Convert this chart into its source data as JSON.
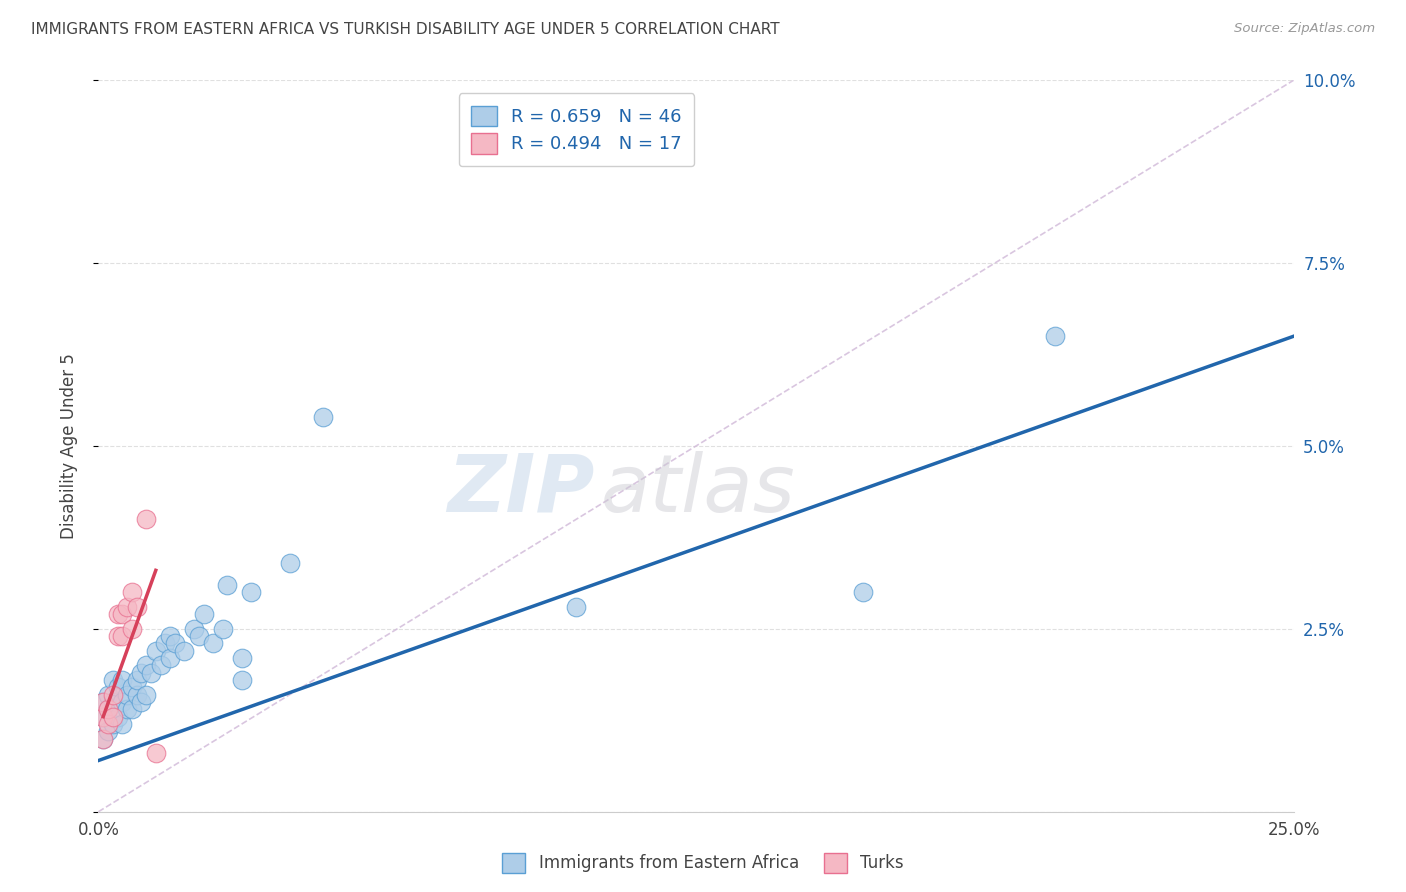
{
  "title": "IMMIGRANTS FROM EASTERN AFRICA VS TURKISH DISABILITY AGE UNDER 5 CORRELATION CHART",
  "source": "Source: ZipAtlas.com",
  "ylabel": "Disability Age Under 5",
  "legend_label_blue": "Immigrants from Eastern Africa",
  "legend_label_pink": "Turks",
  "watermark_zip": "ZIP",
  "watermark_atlas": "atlas",
  "blue_scatter_x": [
    0.001,
    0.001,
    0.001,
    0.002,
    0.002,
    0.002,
    0.003,
    0.003,
    0.003,
    0.004,
    0.004,
    0.005,
    0.005,
    0.005,
    0.006,
    0.006,
    0.007,
    0.007,
    0.008,
    0.008,
    0.009,
    0.009,
    0.01,
    0.01,
    0.011,
    0.012,
    0.013,
    0.014,
    0.015,
    0.015,
    0.016,
    0.018,
    0.02,
    0.021,
    0.022,
    0.024,
    0.026,
    0.027,
    0.03,
    0.03,
    0.032,
    0.04,
    0.047,
    0.1,
    0.16,
    0.2
  ],
  "blue_scatter_y": [
    0.01,
    0.013,
    0.015,
    0.011,
    0.014,
    0.016,
    0.012,
    0.015,
    0.018,
    0.013,
    0.017,
    0.012,
    0.015,
    0.018,
    0.014,
    0.016,
    0.014,
    0.017,
    0.016,
    0.018,
    0.015,
    0.019,
    0.016,
    0.02,
    0.019,
    0.022,
    0.02,
    0.023,
    0.021,
    0.024,
    0.023,
    0.022,
    0.025,
    0.024,
    0.027,
    0.023,
    0.025,
    0.031,
    0.018,
    0.021,
    0.03,
    0.034,
    0.054,
    0.028,
    0.03,
    0.065
  ],
  "pink_scatter_x": [
    0.001,
    0.001,
    0.001,
    0.002,
    0.002,
    0.003,
    0.003,
    0.004,
    0.004,
    0.005,
    0.005,
    0.006,
    0.007,
    0.007,
    0.008,
    0.01,
    0.012
  ],
  "pink_scatter_y": [
    0.01,
    0.013,
    0.015,
    0.012,
    0.014,
    0.013,
    0.016,
    0.024,
    0.027,
    0.024,
    0.027,
    0.028,
    0.025,
    0.03,
    0.028,
    0.04,
    0.008
  ],
  "blue_line_x": [
    0.0,
    0.25
  ],
  "blue_line_y": [
    0.007,
    0.065
  ],
  "pink_line_x": [
    0.001,
    0.012
  ],
  "pink_line_y": [
    0.013,
    0.033
  ],
  "diag_line_x": [
    0.0,
    0.25
  ],
  "diag_line_y": [
    0.0,
    0.1
  ],
  "xlim": [
    0.0,
    0.25
  ],
  "ylim": [
    0.0,
    0.1
  ],
  "yticks": [
    0.0,
    0.025,
    0.05,
    0.075,
    0.1
  ],
  "ytick_labels_right": [
    "",
    "2.5%",
    "5.0%",
    "7.5%",
    "10.0%"
  ],
  "xticks": [
    0.0,
    0.05,
    0.1,
    0.15,
    0.2,
    0.25
  ],
  "xtick_labels": [
    "0.0%",
    "",
    "",
    "",
    "",
    "25.0%"
  ],
  "blue_fill_color": "#aecde8",
  "pink_fill_color": "#f5b8c4",
  "blue_edge_color": "#5a9fd4",
  "pink_edge_color": "#e87090",
  "blue_line_color": "#2166ac",
  "pink_line_color": "#d6405a",
  "diag_line_color": "#d0b8d8",
  "grid_color": "#e0e0e0",
  "title_color": "#444444",
  "axis_label_color": "#444444",
  "right_tick_color": "#2166ac",
  "legend_text_color": "#2166ac"
}
